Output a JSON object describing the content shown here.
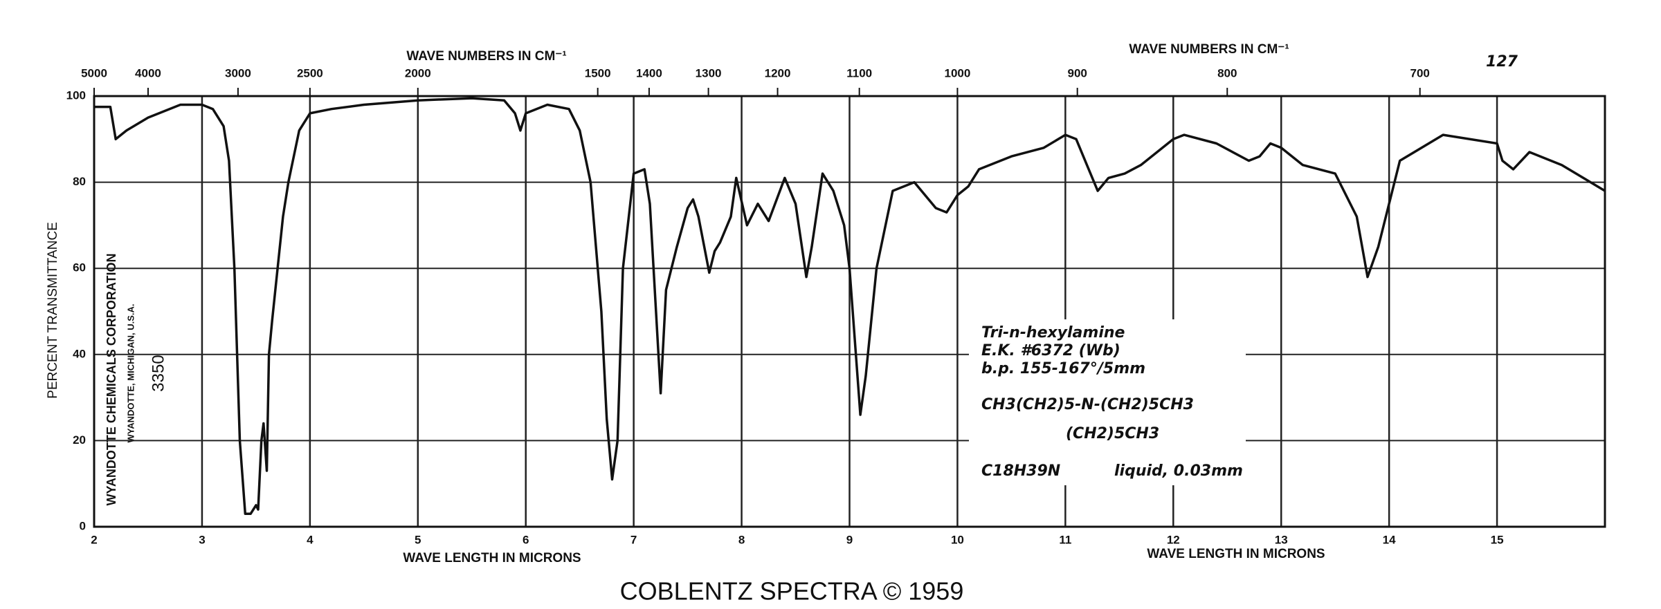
{
  "chart_data": {
    "type": "line",
    "top_axis": {
      "titles": [
        "WAVE NUMBERS IN CM⁻¹",
        "WAVE NUMBERS IN CM⁻¹"
      ],
      "ticks": [
        5000,
        4000,
        3000,
        2500,
        2000,
        1500,
        1400,
        1300,
        1200,
        1100,
        1000,
        900,
        800,
        700
      ]
    },
    "xlabels": [
      "WAVE LENGTH IN MICRONS",
      "WAVE LENGTH IN MICRONS"
    ],
    "ylabel": "PERCENT TRANSMITTANCE",
    "page_number": "127",
    "footer": "COBLENTZ SPECTRA © 1959",
    "source": [
      "WYANDOTTE CHEMICALS CORPORATION",
      "WYANDOTTE, MICHIGAN, U.S.A.",
      "3350"
    ],
    "annotations": [
      "Tri-n-hexylamine",
      "E.K. #6372 (Wb)",
      "b.p. 155-167°/5mm",
      "CH3(CH2)5-N-(CH2)5CH3",
      "(CH2)5CH3",
      "C18H39N",
      "liquid, 0.03mm"
    ],
    "xlim": [
      2,
      16
    ],
    "xticks": [
      2,
      3,
      4,
      5,
      6,
      7,
      8,
      9,
      10,
      11,
      12,
      13,
      14,
      15
    ],
    "ylim": [
      0,
      100
    ],
    "yticks": [
      0,
      20,
      40,
      60,
      80,
      100
    ],
    "grid": true,
    "color": "#111111",
    "x": [
      2.0,
      2.15,
      2.2,
      2.3,
      2.5,
      2.8,
      3.0,
      3.1,
      3.2,
      3.25,
      3.3,
      3.35,
      3.4,
      3.45,
      3.5,
      3.52,
      3.55,
      3.57,
      3.6,
      3.62,
      3.65,
      3.7,
      3.75,
      3.8,
      3.9,
      4.0,
      4.2,
      4.5,
      5.0,
      5.5,
      5.8,
      5.9,
      5.95,
      6.0,
      6.2,
      6.4,
      6.5,
      6.6,
      6.7,
      6.75,
      6.8,
      6.85,
      6.9,
      7.0,
      7.1,
      7.15,
      7.25,
      7.3,
      7.4,
      7.5,
      7.55,
      7.6,
      7.7,
      7.75,
      7.8,
      7.9,
      7.95,
      8.05,
      8.15,
      8.25,
      8.4,
      8.5,
      8.6,
      8.65,
      8.75,
      8.85,
      8.95,
      9.0,
      9.1,
      9.15,
      9.25,
      9.4,
      9.6,
      9.8,
      9.9,
      10.0,
      10.1,
      10.2,
      10.5,
      10.8,
      11.0,
      11.1,
      11.2,
      11.3,
      11.4,
      11.55,
      11.7,
      12.0,
      12.1,
      12.4,
      12.7,
      12.8,
      12.9,
      13.0,
      13.2,
      13.5,
      13.7,
      13.8,
      13.9,
      14.1,
      14.5,
      15.0,
      15.05,
      15.15,
      15.3,
      15.6,
      16.0
    ],
    "values": [
      97.5,
      97.5,
      90,
      92,
      95,
      98,
      98,
      97,
      93,
      85,
      60,
      20,
      3,
      3,
      5,
      4,
      20,
      24,
      13,
      40,
      48,
      60,
      72,
      80,
      92,
      96,
      97,
      98,
      99,
      99.5,
      99,
      96,
      92,
      96,
      98,
      97,
      92,
      80,
      50,
      25,
      11,
      20,
      60,
      82,
      83,
      75,
      31,
      55,
      65,
      74,
      76,
      72,
      59,
      64,
      66,
      72,
      81,
      70,
      75,
      71,
      81,
      75,
      58,
      65,
      82,
      78,
      70,
      60,
      26,
      35,
      60,
      78,
      80,
      74,
      73,
      77,
      79,
      83,
      86,
      88,
      91,
      90,
      84,
      78,
      81,
      82,
      84,
      90,
      91,
      89,
      85,
      86,
      89,
      88,
      84,
      82,
      72,
      58,
      65,
      85,
      91,
      89,
      85,
      83,
      87,
      84,
      78
    ]
  }
}
